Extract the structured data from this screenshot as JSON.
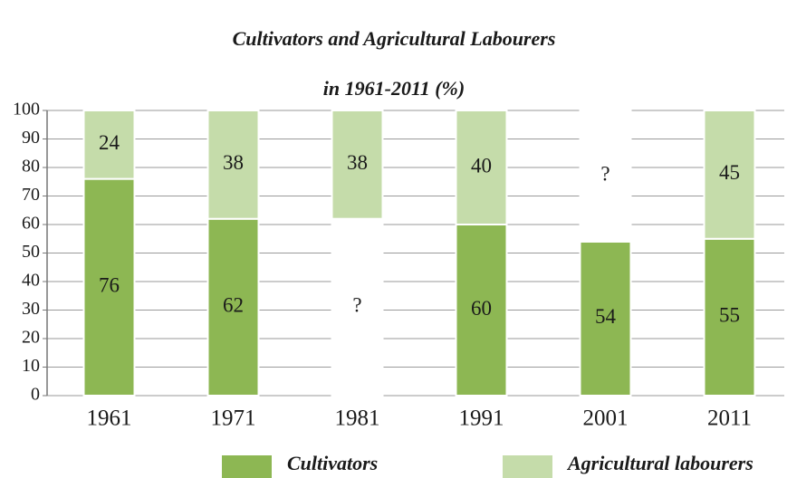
{
  "chart_data": {
    "type": "stacked_bar",
    "title": [
      "Cultivators and  Agricultural Labourers",
      "in 1961-2011 (%)"
    ],
    "categories": [
      "1961",
      "1971",
      "1981",
      "1991",
      "2001",
      "2011"
    ],
    "series": [
      {
        "name": "Cultivators",
        "color": "#8db753",
        "colors": [
          "#8db753",
          "#8db753",
          "#ffffff",
          "#8db753",
          "#8db753",
          "#8db753"
        ],
        "values": [
          76,
          62,
          62,
          60,
          54,
          55
        ],
        "value_labels": [
          "76",
          "62",
          "?",
          "60",
          "54",
          "55"
        ]
      },
      {
        "name": "Agricultural labourers",
        "color": "#c5dcaa",
        "colors": [
          "#c5dcaa",
          "#c5dcaa",
          "#c5dcaa",
          "#c5dcaa",
          "#ffffff",
          "#c5dcaa"
        ],
        "values": [
          24,
          38,
          38,
          40,
          46,
          45
        ],
        "value_labels": [
          "24",
          "38",
          "38",
          "40",
          "?",
          "45"
        ]
      }
    ],
    "ylim": [
      0,
      100
    ],
    "yticks": [
      0,
      10,
      20,
      30,
      40,
      50,
      60,
      70,
      80,
      90,
      100
    ],
    "grid": true
  }
}
